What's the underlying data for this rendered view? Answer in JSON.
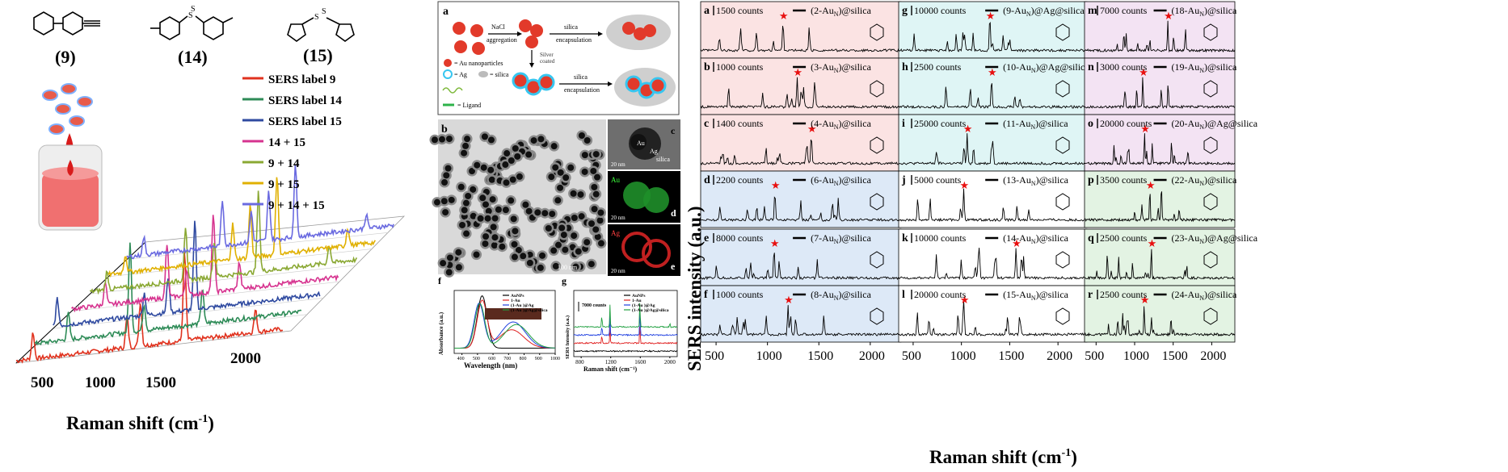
{
  "left": {
    "compounds": [
      {
        "id": "9",
        "label": "(9)"
      },
      {
        "id": "14",
        "label": "(14)"
      },
      {
        "id": "15",
        "label": "(15)"
      }
    ],
    "xlabel": "Raman shift (cm",
    "xlabel_sup": "-1",
    "xlabel_end": ")",
    "xticks": [
      "500",
      "1000",
      "1500",
      "2000"
    ],
    "legend": [
      {
        "name": "SERS label 9",
        "color": "#e0321e"
      },
      {
        "name": "SERS label 14",
        "color": "#2e8b57"
      },
      {
        "name": "SERS label 15",
        "color": "#2f4aa0"
      },
      {
        "name": "14 + 15",
        "color": "#d6338f"
      },
      {
        "name": "9 + 14",
        "color": "#8aa833"
      },
      {
        "name": "9 + 15",
        "color": "#e0b000"
      },
      {
        "name": "9 + 14 + 15",
        "color": "#6a6ae0"
      }
    ]
  },
  "middle": {
    "panel_a": {
      "letter": "a",
      "step1": "NaCl",
      "step1b": "aggregation",
      "step2": "silica",
      "step2b": "encapsulation",
      "step3": "Silver",
      "step3b": "coated",
      "step4": "silica",
      "step4b": "encapsulation",
      "legend_au": "= Au nanoparticles",
      "legend_ag": "= Ag",
      "legend_silica": "= silica",
      "legend_ligand": "= Ligand"
    },
    "panel_b": {
      "letter": "b",
      "scale": "100 nm"
    },
    "panel_c": {
      "letter": "c",
      "au": "Au",
      "ag": "Ag",
      "silica": "silica",
      "scale": "20 nm"
    },
    "panel_d": {
      "letter": "d",
      "el": "Au",
      "scale": "20 nm"
    },
    "panel_e": {
      "letter": "e",
      "el": "Ag",
      "scale": "20 nm"
    },
    "panel_f": {
      "letter": "f",
      "xlabel": "Wavelength (nm)",
      "ylabel": "Absorbance (a.u.)",
      "xticks": [
        "400",
        "500",
        "600",
        "700",
        "800",
        "900",
        "1000"
      ],
      "legend": [
        "AuNPs",
        "1-Au",
        "(1-Au  )@Ag",
        "(1-Au  )@Ag@silica"
      ]
    },
    "panel_g": {
      "letter": "g",
      "xlabel": "Raman shift (cm",
      "ylabel": "SERS Intensity (a.u.)",
      "scale": "7000 counts",
      "xticks": [
        "800",
        "1200",
        "1600",
        "2000"
      ],
      "legend": [
        "AuNPs",
        "1-Au",
        "(1-Au  )@Ag",
        "(1-Au  )@Ag@silica"
      ]
    },
    "series_colors": [
      "#000000",
      "#e02020",
      "#2040e0",
      "#20a040"
    ]
  },
  "right": {
    "ylabel": "SERS intensity (a.u.)",
    "xlabel": "Raman shift (cm",
    "xticks": [
      "500",
      "1000",
      "1500",
      "2000"
    ],
    "panels": [
      {
        "letter": "a",
        "counts": "1500 counts",
        "label": "(2-Au",
        "suffix": ")@silica",
        "bg": "#fbe3e3"
      },
      {
        "letter": "b",
        "counts": "1000 counts",
        "label": "(3-Au",
        "suffix": ")@silica",
        "bg": "#fbe3e3"
      },
      {
        "letter": "c",
        "counts": "1400 counts",
        "label": "(4-Au",
        "suffix": ")@silica",
        "bg": "#fbe3e3"
      },
      {
        "letter": "d",
        "counts": "2200 counts",
        "label": "(6-Au",
        "suffix": ")@silica",
        "bg": "#dde9f7"
      },
      {
        "letter": "e",
        "counts": "8000 counts",
        "label": "(7-Au",
        "suffix": ")@silica",
        "bg": "#dde9f7"
      },
      {
        "letter": "f",
        "counts": "1000 counts",
        "label": "(8-Au",
        "suffix": ")@silica",
        "bg": "#dde9f7"
      },
      {
        "letter": "g",
        "counts": "10000 counts",
        "label": "(9-Au",
        "suffix": ")@Ag@silica",
        "bg": "#dff5f5"
      },
      {
        "letter": "h",
        "counts": "2500 counts",
        "label": "(10-Au",
        "suffix": ")@Ag@silica",
        "bg": "#dff5f5"
      },
      {
        "letter": "i",
        "counts": "25000 counts",
        "label": "(11-Au",
        "suffix": ")@silica",
        "bg": "#dff5f5"
      },
      {
        "letter": "j",
        "counts": "5000 counts",
        "label": "(13-Au",
        "suffix": ")@silica",
        "bg": "#ffffff"
      },
      {
        "letter": "k",
        "counts": "10000 counts",
        "label": "(14-Au",
        "suffix": ")@silica",
        "bg": "#ffffff"
      },
      {
        "letter": "l",
        "counts": "20000 counts",
        "label": "(15-Au",
        "suffix": ")@silica",
        "bg": "#ffffff"
      },
      {
        "letter": "m",
        "counts": "7000 counts",
        "label": "(18-Au",
        "suffix": ")@silica",
        "bg": "#f3e3f3"
      },
      {
        "letter": "n",
        "counts": "3000 counts",
        "label": "(19-Au",
        "suffix": ")@silica",
        "bg": "#f3e3f3"
      },
      {
        "letter": "o",
        "counts": "20000 counts",
        "label": "(20-Au",
        "suffix": ")@Ag@silica",
        "bg": "#f3e3f3"
      },
      {
        "letter": "p",
        "counts": "3500 counts",
        "label": "(22-Au",
        "suffix": ")@silica",
        "bg": "#e3f3e3"
      },
      {
        "letter": "q",
        "counts": "2500 counts",
        "label": "(23-Au",
        "suffix": ")@Ag@silica",
        "bg": "#e3f3e3"
      },
      {
        "letter": "r",
        "counts": "2500 counts",
        "label": "(24-Au",
        "suffix": ")@silica",
        "bg": "#e3f3e3"
      }
    ]
  },
  "chart_data": [
    {
      "type": "line",
      "xlabel": "Raman shift (cm-1)",
      "xlim": [
        400,
        2300
      ],
      "series": [
        {
          "name": "SERS label 9",
          "peaks": [
            [
              520,
              0.3
            ],
            [
              1190,
              0.35
            ],
            [
              1285,
              0.5
            ],
            [
              1600,
              1.0
            ],
            [
              2105,
              0.25
            ]
          ]
        },
        {
          "name": "SERS label 14",
          "peaks": [
            [
              640,
              0.3
            ],
            [
              1080,
              1.0
            ],
            [
              1180,
              0.3
            ],
            [
              1595,
              0.4
            ]
          ]
        },
        {
          "name": "SERS label 15",
          "peaks": [
            [
              430,
              0.3
            ],
            [
              1050,
              0.25
            ],
            [
              1220,
              0.4
            ],
            [
              1410,
              1.0
            ]
          ]
        },
        {
          "name": "14 + 15",
          "peaks": [
            [
              640,
              0.25
            ],
            [
              1080,
              0.6
            ],
            [
              1220,
              0.3
            ],
            [
              1410,
              0.9
            ],
            [
              1595,
              0.3
            ]
          ]
        },
        {
          "name": "9 + 14",
          "peaks": [
            [
              520,
              0.2
            ],
            [
              1080,
              0.6
            ],
            [
              1285,
              0.4
            ],
            [
              1600,
              0.9
            ],
            [
              2105,
              0.2
            ]
          ]
        },
        {
          "name": "9 + 15",
          "peaks": [
            [
              520,
              0.2
            ],
            [
              1285,
              0.4
            ],
            [
              1410,
              0.6
            ],
            [
              1600,
              0.9
            ],
            [
              2105,
              0.2
            ]
          ]
        },
        {
          "name": "9 + 14 + 15",
          "peaks": [
            [
              520,
              0.2
            ],
            [
              1080,
              0.5
            ],
            [
              1285,
              0.35
            ],
            [
              1410,
              0.55
            ],
            [
              1600,
              0.8
            ],
            [
              2105,
              0.15
            ]
          ]
        }
      ]
    },
    {
      "type": "line",
      "xlabel": "Wavelength (nm)",
      "ylabel": "Absorbance (a.u.)",
      "xlim": [
        350,
        1000
      ],
      "series": [
        {
          "name": "AuNPs",
          "peaks": [
            [
              530,
              1.0
            ]
          ]
        },
        {
          "name": "1-Au",
          "peaks": [
            [
              530,
              0.9
            ],
            [
              720,
              0.35
            ]
          ]
        },
        {
          "name": "(1-Au)@Ag",
          "peaks": [
            [
              510,
              0.85
            ],
            [
              730,
              0.5
            ]
          ]
        },
        {
          "name": "(1-Au)@Ag@silica",
          "peaks": [
            [
              515,
              0.85
            ],
            [
              750,
              0.45
            ]
          ]
        }
      ]
    },
    {
      "type": "line",
      "xlabel": "Raman shift (cm-1)",
      "ylabel": "SERS Intensity (a.u.)",
      "xlim": [
        700,
        2100
      ],
      "series": [
        {
          "name": "AuNPs",
          "peaks": []
        },
        {
          "name": "1-Au",
          "peaks": [
            [
              1080,
              0.3
            ],
            [
              1190,
              0.5
            ],
            [
              1595,
              0.6
            ]
          ]
        },
        {
          "name": "(1-Au)@Ag",
          "peaks": [
            [
              1080,
              0.35
            ],
            [
              1190,
              0.6
            ],
            [
              1595,
              0.8
            ]
          ]
        },
        {
          "name": "(1-Au)@Ag@silica",
          "peaks": [
            [
              1080,
              0.4
            ],
            [
              1190,
              0.7
            ],
            [
              1595,
              0.9
            ],
            [
              2000,
              0.15
            ]
          ]
        }
      ]
    }
  ]
}
